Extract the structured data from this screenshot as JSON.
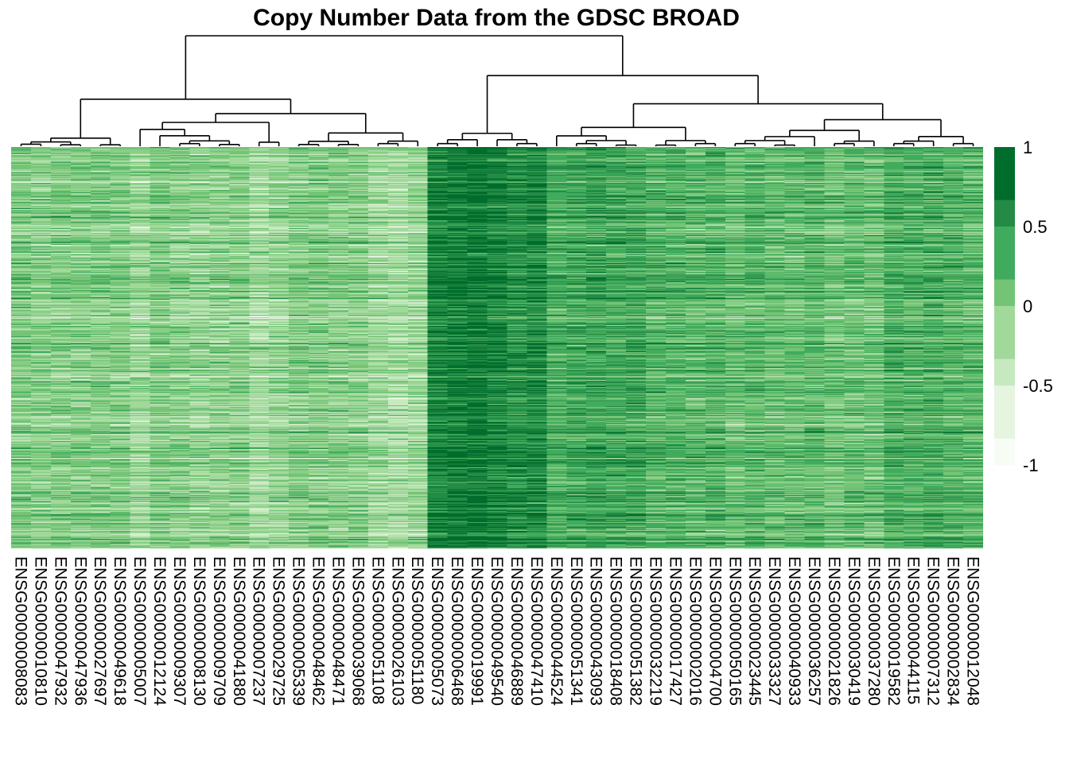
{
  "chart_data": {
    "type": "heatmap",
    "title": "Copy Number Data from the GDSC BROAD",
    "columns": [
      "ENSG00000008083",
      "ENSG00000010810",
      "ENSG00000047932",
      "ENSG00000047936",
      "ENSG00000027697",
      "ENSG00000049618",
      "ENSG00000005007",
      "ENSG00000012124",
      "ENSG00000009307",
      "ENSG00000008130",
      "ENSG00000009709",
      "ENSG00000041880",
      "ENSG00000007237",
      "ENSG00000029725",
      "ENSG00000005339",
      "ENSG00000048462",
      "ENSG00000048471",
      "ENSG00000039068",
      "ENSG00000051108",
      "ENSG00000026103",
      "ENSG00000051180",
      "ENSG00000005073",
      "ENSG00000006468",
      "ENSG00000019991",
      "ENSG00000049540",
      "ENSG00000046889",
      "ENSG00000047410",
      "ENSG00000044524",
      "ENSG00000051341",
      "ENSG00000043093",
      "ENSG00000018408",
      "ENSG00000051382",
      "ENSG00000032219",
      "ENSG00000017427",
      "ENSG00000002016",
      "ENSG00000004700",
      "ENSG00000050165",
      "ENSG00000023445",
      "ENSG00000033327",
      "ENSG00000040933",
      "ENSG00000036257",
      "ENSG00000021826",
      "ENSG00000030419",
      "ENSG00000037280",
      "ENSG00000019582",
      "ENSG00000044115",
      "ENSG00000007312",
      "ENSG00000002834",
      "ENSG00000012048"
    ],
    "column_mean": [
      0.05,
      0.02,
      0.04,
      0.03,
      0.05,
      0.04,
      -0.1,
      0.06,
      0.0,
      -0.05,
      -0.02,
      0.0,
      -0.15,
      -0.05,
      0.03,
      0.05,
      0.02,
      0.0,
      -0.1,
      -0.15,
      -0.1,
      0.7,
      0.75,
      0.8,
      0.7,
      0.6,
      0.65,
      0.35,
      0.4,
      0.45,
      0.4,
      0.4,
      0.3,
      0.3,
      0.25,
      0.3,
      0.2,
      0.25,
      0.2,
      0.2,
      0.25,
      0.15,
      0.2,
      0.15,
      0.35,
      0.3,
      0.35,
      0.3,
      0.25
    ],
    "n_rows": 460,
    "colorbar": {
      "range": [
        -1,
        1
      ],
      "ticks": [
        "1",
        "0.5",
        "0",
        "-0.5",
        "-1"
      ],
      "tick_values": [
        1,
        0.5,
        0,
        -0.5,
        -1
      ],
      "colors": [
        "#f7fcf5",
        "#e5f5e0",
        "#c7e9c0",
        "#a1d99b",
        "#74c476",
        "#41ab5d",
        "#238b45",
        "#006d2c"
      ]
    },
    "dendrogram": "columns",
    "xlabel": "",
    "ylabel": ""
  }
}
